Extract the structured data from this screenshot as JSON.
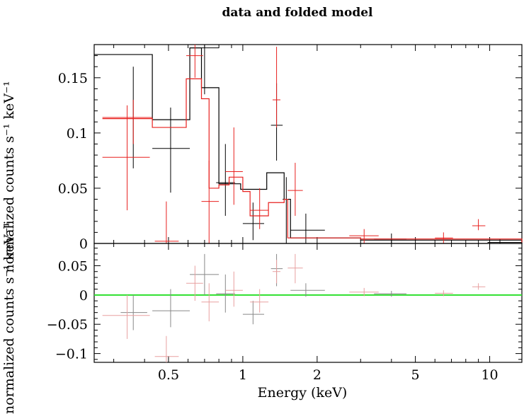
{
  "chart_data": {
    "type": "scatter",
    "title": "data and folded model",
    "xlabel": "Energy (keV)",
    "ylabel_top": "normalized counts s⁻¹ keV⁻¹",
    "ylabel_bottom": "normalized counts s⁻¹ keV⁻¹",
    "x_scale": "log",
    "xlim": [
      0.25,
      13.5
    ],
    "x_ticks": [
      {
        "value": 0.5,
        "label": "0.5"
      },
      {
        "value": 1,
        "label": "1"
      },
      {
        "value": 2,
        "label": "2"
      },
      {
        "value": 5,
        "label": "5"
      },
      {
        "value": 10,
        "label": "10"
      }
    ],
    "top_panel": {
      "ylim": [
        0,
        0.18
      ],
      "y_ticks": [
        {
          "value": 0,
          "label": "0"
        },
        {
          "value": 0.05,
          "label": "0.05"
        },
        {
          "value": 0.1,
          "label": "0.1"
        },
        {
          "value": 0.15,
          "label": "0.15"
        }
      ],
      "series": [
        {
          "color": "#000000",
          "kind": "data",
          "points": [
            {
              "x": 0.36,
              "xlo": 0.32,
              "xhi": 0.41,
              "y": 0.114,
              "ylo": 0.068,
              "yhi": 0.16
            },
            {
              "x": 0.51,
              "xlo": 0.43,
              "xhi": 0.61,
              "y": 0.086,
              "ylo": 0.046,
              "yhi": 0.123
            },
            {
              "x": 0.7,
              "xlo": 0.61,
              "xhi": 0.8,
              "y": 0.177,
              "ylo": 0.135,
              "yhi": 0.18
            },
            {
              "x": 0.85,
              "xlo": 0.78,
              "xhi": 0.93,
              "y": 0.055,
              "ylo": 0.025,
              "yhi": 0.09
            },
            {
              "x": 1.1,
              "xlo": 1.0,
              "xhi": 1.22,
              "y": 0.018,
              "ylo": 0.003,
              "yhi": 0.037
            },
            {
              "x": 1.37,
              "xlo": 1.3,
              "xhi": 1.45,
              "y": 0.107,
              "ylo": 0.075,
              "yhi": 0.145
            },
            {
              "x": 1.5,
              "xlo": 1.45,
              "xhi": 1.56,
              "y": 0.04,
              "ylo": 0.0,
              "yhi": 0.06
            },
            {
              "x": 1.8,
              "xlo": 1.56,
              "xhi": 2.15,
              "y": 0.012,
              "ylo": 0.0,
              "yhi": 0.027
            },
            {
              "x": 4.0,
              "xlo": 3.4,
              "xhi": 4.6,
              "y": 0.004,
              "ylo": 0.0,
              "yhi": 0.009
            },
            {
              "x": 11.0,
              "xlo": 9.8,
              "xhi": 13.5,
              "y": 0.001,
              "ylo": 0.0,
              "yhi": 0.004
            }
          ],
          "model_steps": [
            [
              0.25,
              0.171
            ],
            [
              0.43,
              0.112
            ],
            [
              0.61,
              0.177
            ],
            [
              0.68,
              0.141
            ],
            [
              0.8,
              0.054
            ],
            [
              0.98,
              0.049
            ],
            [
              1.25,
              0.064
            ],
            [
              1.47,
              0.04
            ],
            [
              1.56,
              0.005
            ],
            [
              3.0,
              0.003
            ],
            [
              13.5,
              0.001
            ]
          ]
        },
        {
          "color": "#e8211f",
          "kind": "data",
          "points": [
            {
              "x": 0.34,
              "xlo": 0.27,
              "xhi": 0.42,
              "y": 0.078,
              "ylo": 0.03,
              "yhi": 0.125
            },
            {
              "x": 0.36,
              "xlo": 0.27,
              "xhi": 0.43,
              "y": 0.114,
              "ylo": 0.09,
              "yhi": 0.13
            },
            {
              "x": 0.49,
              "xlo": 0.44,
              "xhi": 0.55,
              "y": 0.002,
              "ylo": 0.0,
              "yhi": 0.038
            },
            {
              "x": 0.64,
              "xlo": 0.59,
              "xhi": 0.69,
              "y": 0.17,
              "ylo": 0.15,
              "yhi": 0.18
            },
            {
              "x": 0.73,
              "xlo": 0.68,
              "xhi": 0.8,
              "y": 0.038,
              "ylo": 0.0,
              "yhi": 0.075
            },
            {
              "x": 0.92,
              "xlo": 0.85,
              "xhi": 1.0,
              "y": 0.065,
              "ylo": 0.035,
              "yhi": 0.105
            },
            {
              "x": 1.17,
              "xlo": 1.07,
              "xhi": 1.27,
              "y": 0.03,
              "ylo": 0.013,
              "yhi": 0.05
            },
            {
              "x": 1.37,
              "xlo": 1.32,
              "xhi": 1.42,
              "y": 0.13,
              "ylo": 0.105,
              "yhi": 0.178
            },
            {
              "x": 1.63,
              "xlo": 1.52,
              "xhi": 1.75,
              "y": 0.048,
              "ylo": 0.025,
              "yhi": 0.073
            },
            {
              "x": 3.1,
              "xlo": 2.7,
              "xhi": 3.55,
              "y": 0.007,
              "ylo": 0.0,
              "yhi": 0.013
            },
            {
              "x": 6.5,
              "xlo": 6.0,
              "xhi": 7.1,
              "y": 0.005,
              "ylo": 0.0,
              "yhi": 0.01
            },
            {
              "x": 9.0,
              "xlo": 8.5,
              "xhi": 9.6,
              "y": 0.016,
              "ylo": 0.012,
              "yhi": 0.022
            }
          ],
          "model_steps": [
            [
              0.27,
              0.113
            ],
            [
              0.43,
              0.105
            ],
            [
              0.59,
              0.149
            ],
            [
              0.68,
              0.131
            ],
            [
              0.73,
              0.05
            ],
            [
              0.8,
              0.053
            ],
            [
              0.88,
              0.06
            ],
            [
              1.0,
              0.047
            ],
            [
              1.07,
              0.025
            ],
            [
              1.27,
              0.037
            ],
            [
              1.47,
              0.04
            ],
            [
              1.52,
              0.005
            ],
            [
              3.0,
              0.004
            ],
            [
              13.5,
              0.001
            ]
          ]
        }
      ]
    },
    "bottom_panel": {
      "ylim": [
        -0.115,
        0.088
      ],
      "y_ticks": [
        {
          "value": -0.1,
          "label": "−0.1"
        },
        {
          "value": -0.05,
          "label": "−0.05"
        },
        {
          "value": 0,
          "label": "0"
        },
        {
          "value": 0.05,
          "label": "0.05"
        }
      ],
      "zero_line_color": "#2ee02e",
      "series": [
        {
          "color": "#888888",
          "points": [
            {
              "x": 0.36,
              "xlo": 0.32,
              "xhi": 0.41,
              "y": -0.03,
              "ylo": -0.06,
              "yhi": 0.0
            },
            {
              "x": 0.51,
              "xlo": 0.43,
              "xhi": 0.61,
              "y": -0.027,
              "ylo": -0.055,
              "yhi": 0.01
            },
            {
              "x": 0.7,
              "xlo": 0.61,
              "xhi": 0.8,
              "y": 0.035,
              "ylo": 0.0,
              "yhi": 0.07
            },
            {
              "x": 0.85,
              "xlo": 0.78,
              "xhi": 0.93,
              "y": 0.002,
              "ylo": -0.03,
              "yhi": 0.035
            },
            {
              "x": 1.1,
              "xlo": 1.0,
              "xhi": 1.22,
              "y": -0.033,
              "ylo": -0.05,
              "yhi": -0.01
            },
            {
              "x": 1.37,
              "xlo": 1.3,
              "xhi": 1.45,
              "y": 0.045,
              "ylo": 0.015,
              "yhi": 0.07
            },
            {
              "x": 1.8,
              "xlo": 1.56,
              "xhi": 2.15,
              "y": 0.008,
              "ylo": -0.003,
              "yhi": 0.02
            },
            {
              "x": 4.0,
              "xlo": 3.4,
              "xhi": 4.6,
              "y": 0.002,
              "ylo": -0.003,
              "yhi": 0.007
            }
          ]
        },
        {
          "color": "#e8a0a0",
          "points": [
            {
              "x": 0.34,
              "xlo": 0.27,
              "xhi": 0.42,
              "y": -0.035,
              "ylo": -0.075,
              "yhi": 0.0
            },
            {
              "x": 0.49,
              "xlo": 0.44,
              "xhi": 0.55,
              "y": -0.105,
              "ylo": -0.115,
              "yhi": -0.07
            },
            {
              "x": 0.64,
              "xlo": 0.59,
              "xhi": 0.69,
              "y": 0.02,
              "ylo": -0.01,
              "yhi": 0.05
            },
            {
              "x": 0.73,
              "xlo": 0.68,
              "xhi": 0.8,
              "y": -0.012,
              "ylo": -0.045,
              "yhi": 0.02
            },
            {
              "x": 0.92,
              "xlo": 0.85,
              "xhi": 1.0,
              "y": 0.008,
              "ylo": -0.02,
              "yhi": 0.04
            },
            {
              "x": 1.17,
              "xlo": 1.07,
              "xhi": 1.27,
              "y": -0.012,
              "ylo": -0.03,
              "yhi": 0.01
            },
            {
              "x": 1.37,
              "xlo": 1.32,
              "xhi": 1.42,
              "y": 0.04,
              "ylo": 0.02,
              "yhi": 0.06
            },
            {
              "x": 1.63,
              "xlo": 1.52,
              "xhi": 1.75,
              "y": 0.046,
              "ylo": 0.02,
              "yhi": 0.07
            },
            {
              "x": 3.1,
              "xlo": 2.7,
              "xhi": 3.55,
              "y": 0.005,
              "ylo": -0.002,
              "yhi": 0.012
            },
            {
              "x": 6.5,
              "xlo": 6.0,
              "xhi": 7.1,
              "y": 0.003,
              "ylo": -0.002,
              "yhi": 0.008
            },
            {
              "x": 9.0,
              "xlo": 8.5,
              "xhi": 9.6,
              "y": 0.014,
              "ylo": 0.009,
              "yhi": 0.02
            }
          ]
        }
      ]
    }
  }
}
